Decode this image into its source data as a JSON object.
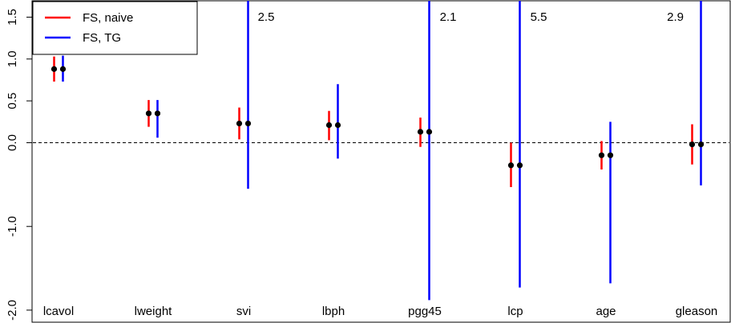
{
  "chart_data": {
    "type": "scatter",
    "title": "",
    "xlabel": "",
    "ylabel": "",
    "ylim": [
      -2.0,
      1.6
    ],
    "y_ticks": [
      -2.0,
      -1.0,
      0.0,
      0.5,
      1.0,
      1.5
    ],
    "y_tick_labels": [
      "-2.0",
      "-1.0",
      "0.0",
      "0.5",
      "1.0",
      "1.5"
    ],
    "zero_line": 0.0,
    "categories": [
      "lcavol",
      "lweight",
      "svi",
      "lbph",
      "pgg45",
      "lcp",
      "age",
      "gleason"
    ],
    "legend": {
      "position": "top-left"
    },
    "series": [
      {
        "name": "FS, naive",
        "color": "#ff0000",
        "estimates": [
          0.88,
          0.35,
          0.23,
          0.21,
          0.13,
          -0.27,
          -0.15,
          -0.02
        ],
        "lower": [
          0.73,
          0.19,
          0.04,
          0.03,
          -0.05,
          -0.53,
          -0.32,
          -0.26
        ],
        "upper": [
          1.03,
          0.51,
          0.42,
          0.38,
          0.3,
          0.0,
          0.02,
          0.22
        ]
      },
      {
        "name": "FS, TG",
        "color": "#0000ff",
        "estimates": [
          0.88,
          0.35,
          0.23,
          0.21,
          0.13,
          -0.27,
          -0.15,
          -0.02
        ],
        "lower": [
          0.73,
          0.06,
          -0.55,
          -0.19,
          -1.88,
          -1.73,
          -1.68,
          -0.51
        ],
        "upper": [
          1.04,
          0.51,
          2.5,
          0.7,
          2.1,
          5.5,
          0.25,
          2.9
        ]
      }
    ],
    "annotations": [
      {
        "category": "svi",
        "text": "2.5"
      },
      {
        "category": "pgg45",
        "text": "2.1"
      },
      {
        "category": "lcp",
        "text": "5.5"
      },
      {
        "category": "gleason",
        "text": "2.9"
      }
    ]
  }
}
